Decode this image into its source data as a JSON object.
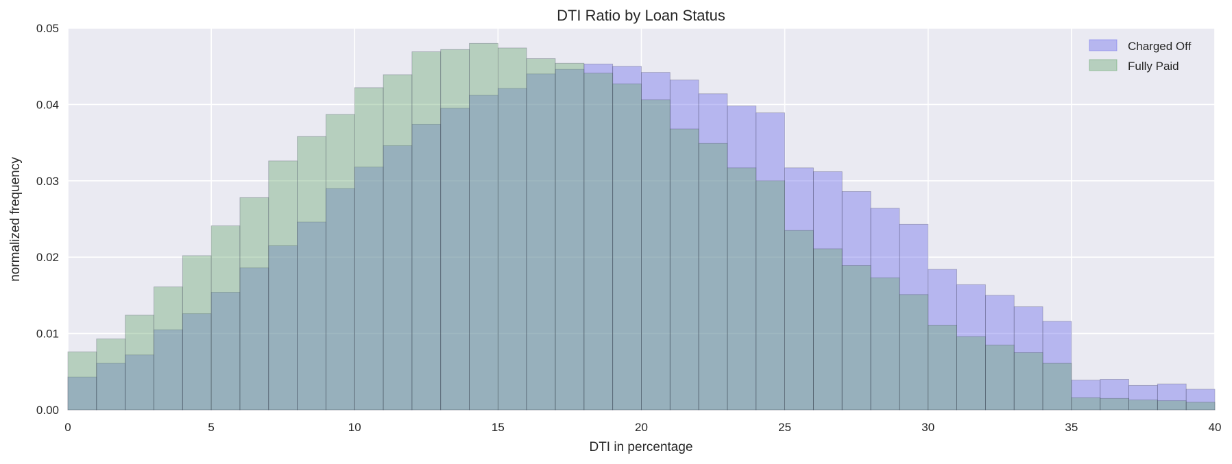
{
  "chart_data": {
    "type": "bar",
    "title": "DTI Ratio by Loan Status",
    "xlabel": "DTI in percentage",
    "ylabel": "normalized frequency",
    "xlim": [
      0,
      40
    ],
    "ylim": [
      0,
      0.05
    ],
    "xticks": [
      "0",
      "5",
      "10",
      "15",
      "20",
      "25",
      "30",
      "35",
      "40"
    ],
    "yticks": [
      "0.00",
      "0.01",
      "0.02",
      "0.03",
      "0.04",
      "0.05"
    ],
    "grid": true,
    "legend_position": "top-right",
    "bin_edges": [
      0,
      1,
      2,
      3,
      4,
      5,
      6,
      7,
      8,
      9,
      10,
      11,
      12,
      13,
      14,
      15,
      16,
      17,
      18,
      19,
      20,
      21,
      22,
      23,
      24,
      25,
      26,
      27,
      28,
      29,
      30,
      31,
      32,
      33,
      34,
      35,
      36,
      37,
      38,
      39,
      40
    ],
    "series": [
      {
        "name": "Charged Off",
        "color": "#7878ec",
        "values": [
          0.0043,
          0.0061,
          0.0072,
          0.0105,
          0.0126,
          0.0154,
          0.0186,
          0.0215,
          0.0246,
          0.029,
          0.0318,
          0.0346,
          0.0374,
          0.0395,
          0.0412,
          0.0421,
          0.044,
          0.0446,
          0.0453,
          0.045,
          0.0442,
          0.0432,
          0.0414,
          0.0398,
          0.0389,
          0.0317,
          0.0312,
          0.0286,
          0.0264,
          0.0243,
          0.0184,
          0.0164,
          0.015,
          0.0135,
          0.0116,
          0.0039,
          0.004,
          0.0032,
          0.0034,
          0.0027
        ]
      },
      {
        "name": "Fully Paid",
        "color": "#6aa871",
        "values": [
          0.0076,
          0.0093,
          0.0124,
          0.0161,
          0.0202,
          0.0241,
          0.0278,
          0.0326,
          0.0358,
          0.0387,
          0.0422,
          0.0439,
          0.0469,
          0.0472,
          0.048,
          0.0474,
          0.046,
          0.0454,
          0.0441,
          0.0427,
          0.0406,
          0.0368,
          0.0349,
          0.0317,
          0.03,
          0.0235,
          0.0211,
          0.0189,
          0.0173,
          0.0151,
          0.0111,
          0.0096,
          0.0085,
          0.0075,
          0.0061,
          0.0016,
          0.0015,
          0.0013,
          0.0012,
          0.001
        ]
      }
    ]
  }
}
